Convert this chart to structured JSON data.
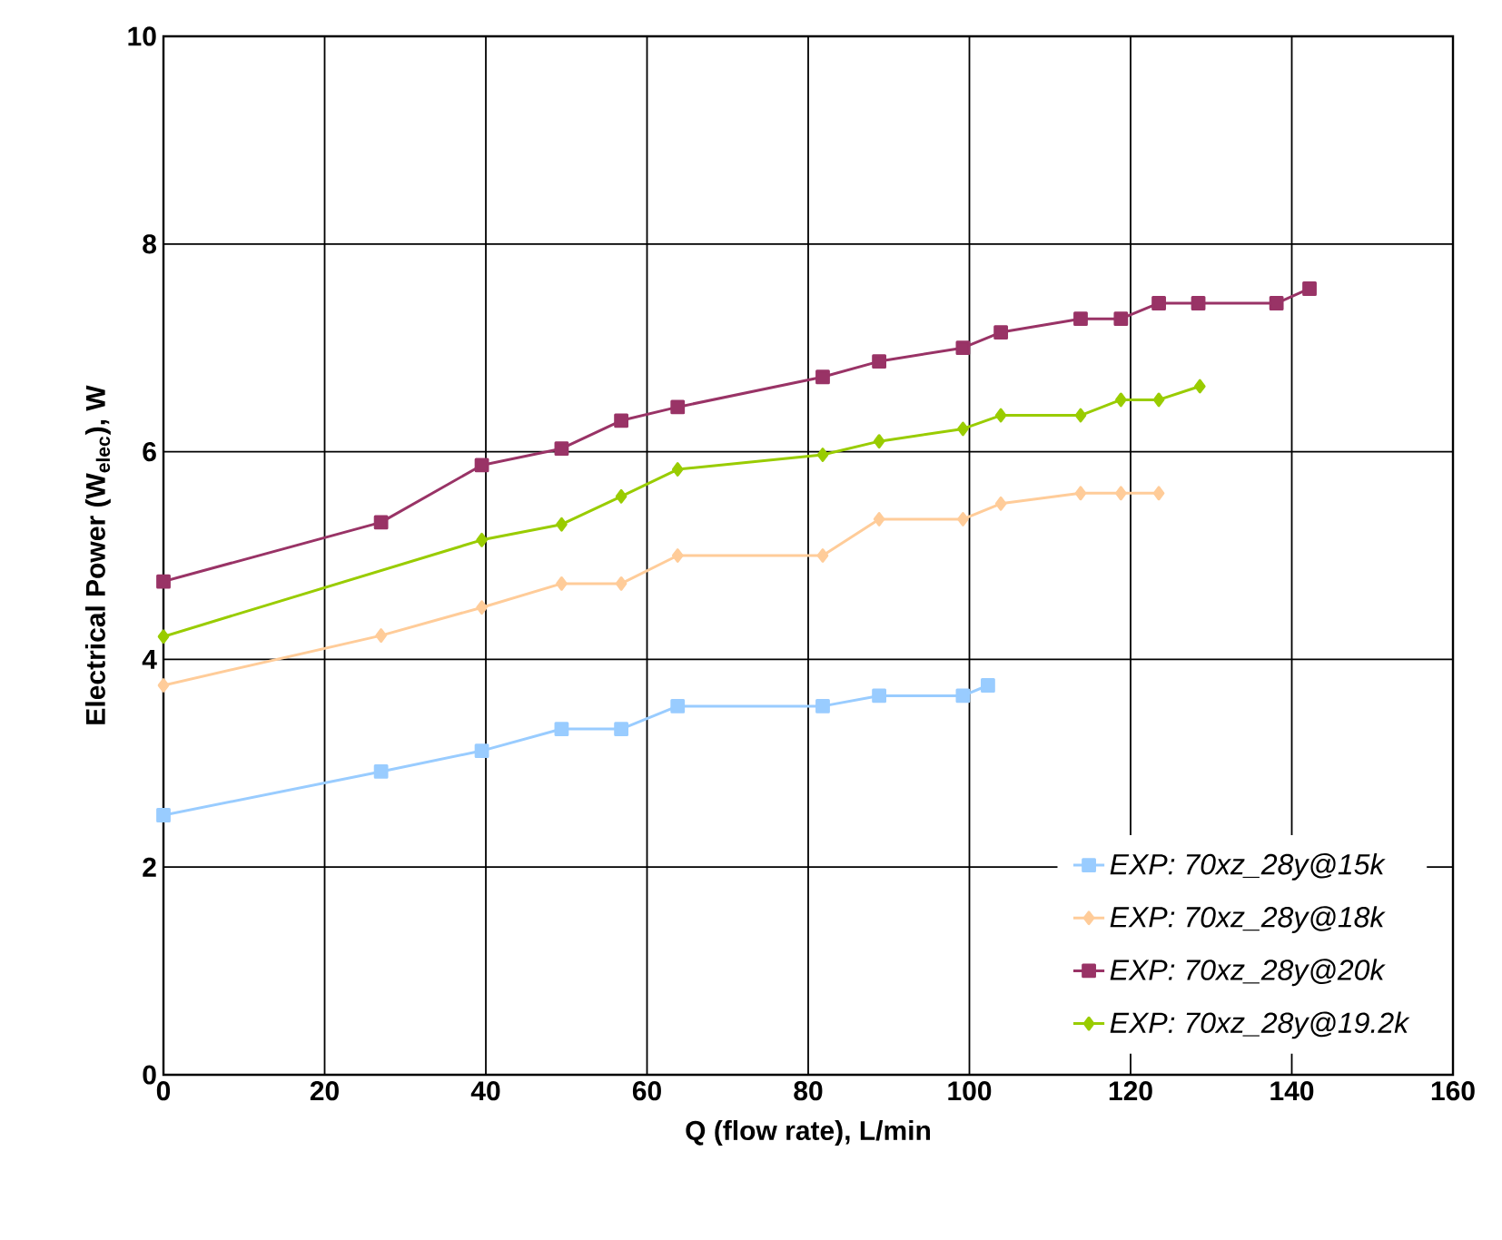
{
  "chart_data": {
    "type": "line",
    "xlabel": "Q (flow rate), L/min",
    "ylabel": "Electrical Power (W$_{elec}$), W",
    "xlim": [
      0,
      160
    ],
    "ylim": [
      0,
      10
    ],
    "xticks": [
      0,
      20,
      40,
      60,
      80,
      100,
      120,
      140,
      160
    ],
    "yticks": [
      0,
      2,
      4,
      6,
      8,
      10
    ],
    "grid": true,
    "legend": "bottom right",
    "series": [
      {
        "name": "EXP: 70xz_28y@15k",
        "color": "#99ccff",
        "marker": "square",
        "x": [
          0,
          27,
          39.5,
          49.4,
          56.8,
          63.8,
          81.8,
          88.8,
          99.2,
          102.3
        ],
        "values": [
          2.5,
          2.92,
          3.12,
          3.33,
          3.33,
          3.55,
          3.55,
          3.65,
          3.65,
          3.75
        ]
      },
      {
        "name": "EXP: 70xz_28y@18k",
        "color": "#ffcc99",
        "marker": "diamond",
        "x": [
          0,
          27,
          39.5,
          49.4,
          56.8,
          63.8,
          81.8,
          88.8,
          99.2,
          103.9,
          113.8,
          118.8,
          123.5
        ],
        "values": [
          3.75,
          4.23,
          4.5,
          4.73,
          4.73,
          5.0,
          5.0,
          5.35,
          5.35,
          5.5,
          5.6,
          5.6,
          5.6
        ]
      },
      {
        "name": "EXP: 70xz_28y@20k",
        "color": "#993366",
        "marker": "square",
        "x": [
          0,
          27,
          39.5,
          49.4,
          56.8,
          63.8,
          81.8,
          88.8,
          99.2,
          103.9,
          113.8,
          118.8,
          123.5,
          128.4,
          138.1,
          142.2
        ],
        "values": [
          4.75,
          5.32,
          5.87,
          6.03,
          6.3,
          6.43,
          6.72,
          6.87,
          7.0,
          7.15,
          7.28,
          7.28,
          7.43,
          7.43,
          7.43,
          7.57
        ]
      },
      {
        "name": "EXP: 70xz_28y@19.2k",
        "color": "#99cc00",
        "marker": "diamond",
        "x": [
          0,
          39.5,
          49.4,
          56.8,
          63.8,
          81.8,
          88.8,
          99.2,
          103.9,
          113.8,
          118.8,
          123.5,
          128.6
        ],
        "values": [
          4.22,
          5.15,
          5.3,
          5.57,
          5.83,
          5.97,
          6.1,
          6.22,
          6.35,
          6.35,
          6.5,
          6.5,
          6.63
        ]
      }
    ]
  }
}
